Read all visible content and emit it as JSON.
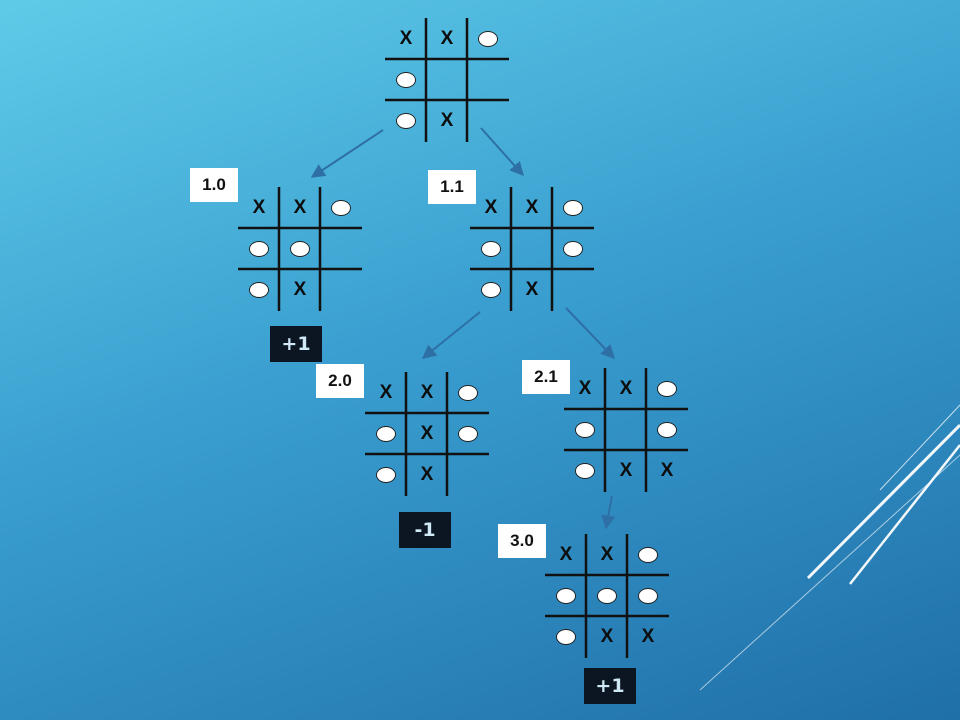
{
  "colors": {
    "background_top": "#5fcbe8",
    "background_bottom": "#1f6fa8",
    "grid_line": "#111111",
    "arrow": "#2e6fa6",
    "score_box": "#0b1622",
    "score_text": "#cfe8f5",
    "label_box": "#ffffff"
  },
  "nodes": [
    {
      "id": "root",
      "label": "",
      "score": "",
      "cells": [
        "X",
        "X",
        "O",
        "O",
        "",
        "",
        "O",
        "X",
        ""
      ]
    },
    {
      "id": "1.0",
      "label": "1.0",
      "score": "+1",
      "cells": [
        "X",
        "X",
        "O",
        "O",
        "O",
        "",
        "O",
        "X",
        ""
      ]
    },
    {
      "id": "1.1",
      "label": "1.1",
      "score": "",
      "cells": [
        "X",
        "X",
        "O",
        "O",
        "",
        "O",
        "O",
        "X",
        ""
      ]
    },
    {
      "id": "2.0",
      "label": "2.0",
      "score": "-1",
      "cells": [
        "X",
        "X",
        "O",
        "O",
        "X",
        "O",
        "O",
        "X",
        ""
      ]
    },
    {
      "id": "2.1",
      "label": "2.1",
      "score": "",
      "cells": [
        "X",
        "X",
        "O",
        "O",
        "",
        "O",
        "O",
        "X",
        "X"
      ]
    },
    {
      "id": "3.0",
      "label": "3.0",
      "score": "+1",
      "cells": [
        "X",
        "X",
        "O",
        "O",
        "O",
        "O",
        "O",
        "X",
        "X"
      ]
    }
  ],
  "edges": [
    {
      "from": "root",
      "to": "1.0"
    },
    {
      "from": "root",
      "to": "1.1"
    },
    {
      "from": "1.1",
      "to": "2.0"
    },
    {
      "from": "1.1",
      "to": "2.1"
    },
    {
      "from": "2.1",
      "to": "3.0"
    }
  ]
}
